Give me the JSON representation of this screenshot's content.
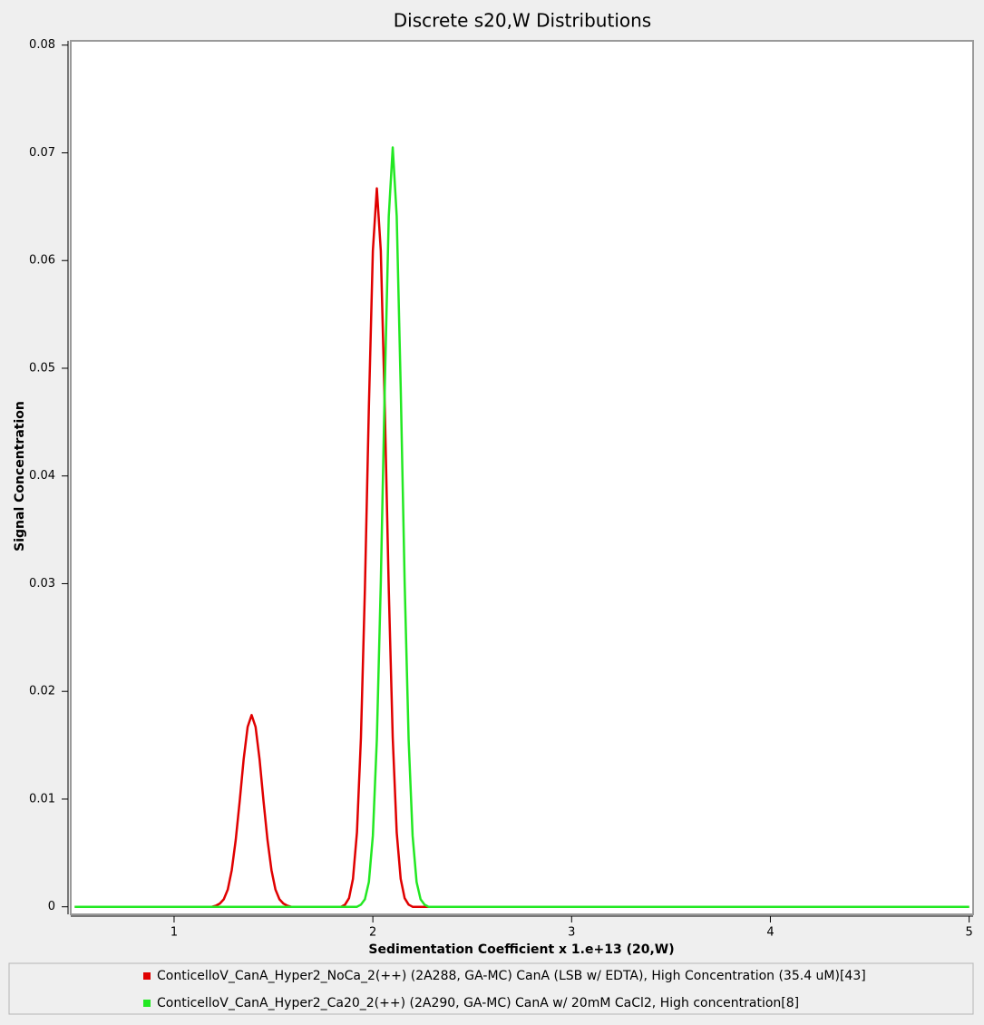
{
  "chart_data": {
    "type": "line",
    "title": "Discrete s20,W Distributions",
    "x_label": "Sedimentation Coefficient x 1.e+13 (20,W)",
    "y_label": "Signal Concentration",
    "x": [
      0.5,
      1.19,
      1.21,
      1.23,
      1.25,
      1.27,
      1.29,
      1.31,
      1.33,
      1.35,
      1.37,
      1.39,
      1.41,
      1.43,
      1.45,
      1.47,
      1.49,
      1.51,
      1.53,
      1.55,
      1.57,
      1.59,
      1.8,
      1.82,
      1.84,
      1.86,
      1.88,
      1.9,
      1.92,
      1.94,
      1.96,
      1.98,
      2.0,
      2.02,
      2.04,
      2.06,
      2.08,
      2.1,
      2.12,
      2.14,
      2.16,
      2.18,
      2.2,
      2.22,
      2.24,
      2.26,
      2.28,
      2.3,
      2.32,
      2.34,
      5.0
    ],
    "series": [
      {
        "name": "ConticelloV_CanA_Hyper2_NoCa_2(++) (2A288, GA-MC) CanA (LSB w/ EDTA), High Concentration (35.4 uM)[43]",
        "color": "#e00000",
        "values": [
          0,
          0,
          0.0001,
          0.0003,
          0.0007,
          0.0016,
          0.0034,
          0.0062,
          0.0098,
          0.0137,
          0.0167,
          0.0178,
          0.0167,
          0.0137,
          0.0098,
          0.0062,
          0.0034,
          0.0016,
          0.0007,
          0.0003,
          0.0001,
          0,
          0,
          0,
          0,
          0.0002,
          0.0008,
          0.0026,
          0.0069,
          0.0157,
          0.0295,
          0.0464,
          0.0609,
          0.0667,
          0.0609,
          0.0464,
          0.0295,
          0.0157,
          0.0069,
          0.0026,
          0.0008,
          0.0002,
          0,
          0,
          0,
          0,
          0,
          0,
          0,
          0,
          0
        ]
      },
      {
        "name": "ConticelloV_CanA_Hyper2_Ca20_2(++) (2A290, GA-MC) CanA w/ 20mM CaCl2, High concentration[8]",
        "color": "#22e822",
        "values": [
          0,
          0,
          0,
          0,
          0,
          0,
          0,
          0,
          0,
          0,
          0,
          0,
          0,
          0,
          0,
          0,
          0,
          0,
          0,
          0,
          0,
          0,
          0,
          0,
          0,
          0,
          0,
          0,
          0,
          0.0002,
          0.0007,
          0.0023,
          0.0066,
          0.0155,
          0.0301,
          0.0483,
          0.0641,
          0.0705,
          0.0641,
          0.0483,
          0.0301,
          0.0155,
          0.0066,
          0.0023,
          0.0007,
          0.0002,
          0,
          0,
          0,
          0,
          0
        ]
      }
    ],
    "xlim": [
      0.48,
      5.02
    ],
    "ylim": [
      -0.0007,
      0.0804
    ],
    "xticks": [
      1,
      2,
      3,
      4,
      5
    ],
    "yticks": [
      0,
      0.01,
      0.02,
      0.03,
      0.04,
      0.05,
      0.06,
      0.07,
      0.08
    ],
    "grid": false
  }
}
